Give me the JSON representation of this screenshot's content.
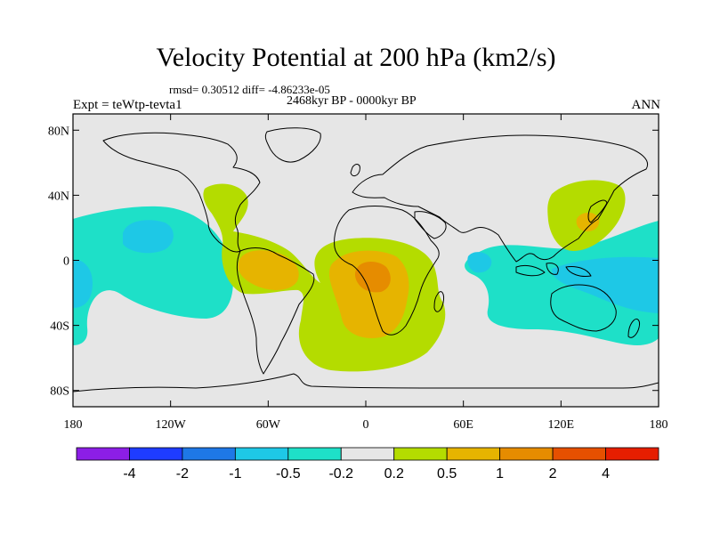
{
  "title": "Velocity Potential at 200 hPa (km2/s)",
  "stats_line": "rmsd= 0.30512 diff= -4.86233e-05",
  "experiment": "Expt = teWtp-tevta1",
  "period": "2468kyr BP - 0000kyr BP",
  "season": "ANN",
  "map": {
    "projection": "cylindrical equidistant",
    "lon_range": [
      -180,
      180
    ],
    "lat_range": [
      -90,
      90
    ],
    "x_ticks": [
      {
        "lon": -180,
        "label": "180"
      },
      {
        "lon": -120,
        "label": "120W"
      },
      {
        "lon": -60,
        "label": "60W"
      },
      {
        "lon": 0,
        "label": "0"
      },
      {
        "lon": 60,
        "label": "60E"
      },
      {
        "lon": 120,
        "label": "120E"
      },
      {
        "lon": 180,
        "label": "180"
      }
    ],
    "y_ticks": [
      {
        "lat": 80,
        "label": "80N"
      },
      {
        "lat": 40,
        "label": "40N"
      },
      {
        "lat": 0,
        "label": "0"
      },
      {
        "lat": -40,
        "label": "40S"
      },
      {
        "lat": -80,
        "label": "80S"
      }
    ],
    "background_color": "#e6e6e6",
    "regions": [
      {
        "name": "central-pacific-negative",
        "value": -0.5,
        "color": "#1ee0c8"
      },
      {
        "name": "indo-pacific-negative",
        "value": -0.5,
        "color": "#1ee0c8"
      },
      {
        "name": "central-pacific-core",
        "value": -1,
        "color": "#1ec8e6"
      },
      {
        "name": "maritime-continent-core",
        "value": -1,
        "color": "#1ec8e6"
      },
      {
        "name": "americas-positive",
        "value": 0.5,
        "color": "#b4dc00"
      },
      {
        "name": "atlantic-africa-positive",
        "value": 0.5,
        "color": "#b4dc00"
      },
      {
        "name": "east-asia-positive",
        "value": 0.5,
        "color": "#b4dc00"
      },
      {
        "name": "amazon-core",
        "value": 1,
        "color": "#e6b400"
      },
      {
        "name": "africa-core",
        "value": 1,
        "color": "#e6b400"
      },
      {
        "name": "east-asia-core",
        "value": 1,
        "color": "#e6b400"
      },
      {
        "name": "congo-peak",
        "value": 2,
        "color": "#e68c00"
      }
    ]
  },
  "colorbar": {
    "colors": [
      "#8c1ee6",
      "#1e3cff",
      "#1e78e6",
      "#1ec8e6",
      "#1ee0c8",
      "#e6e6e6",
      "#b4dc00",
      "#e6b400",
      "#e68c00",
      "#e65000",
      "#e61e00"
    ],
    "labels": [
      "-4",
      "-2",
      "-1",
      "-0.5",
      "-0.2",
      "0.2",
      "0.5",
      "1",
      "2",
      "4"
    ]
  }
}
